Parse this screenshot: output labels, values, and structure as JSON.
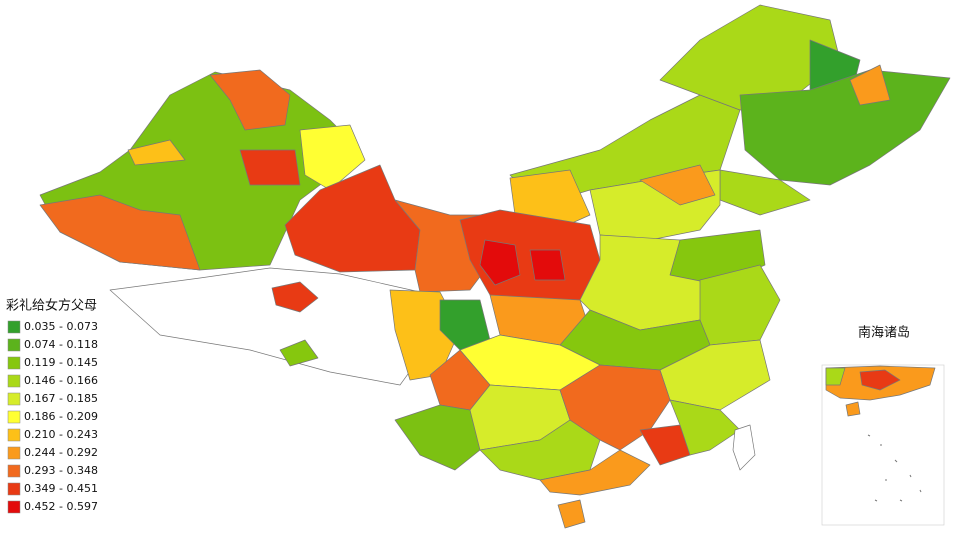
{
  "legend": {
    "title": "彩礼给女方父母",
    "items": [
      {
        "label": "0.035 - 0.073",
        "color": "#33a02c"
      },
      {
        "label": "0.074 - 0.118",
        "color": "#5cb31c"
      },
      {
        "label": "0.119 - 0.145",
        "color": "#86c70e"
      },
      {
        "label": "0.146 - 0.166",
        "color": "#aad918"
      },
      {
        "label": "0.167 - 0.185",
        "color": "#d6ec2a"
      },
      {
        "label": "0.186 - 0.209",
        "color": "#ffff33"
      },
      {
        "label": "0.210 - 0.243",
        "color": "#fdc018"
      },
      {
        "label": "0.244 - 0.292",
        "color": "#fa9a1c"
      },
      {
        "label": "0.293 - 0.348",
        "color": "#f16a1e"
      },
      {
        "label": "0.349 - 0.451",
        "color": "#e83a14"
      },
      {
        "label": "0.452 - 0.597",
        "color": "#e30b0b"
      }
    ]
  },
  "inset": {
    "label": "南海诸岛"
  }
}
